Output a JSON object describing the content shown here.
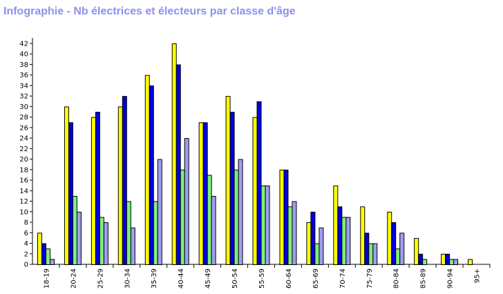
{
  "title_color": "#8f8fef",
  "chart_data": {
    "type": "bar",
    "title": "Infographie - Nb électrices et électeurs par classe d'âge",
    "categories": [
      "18-19",
      "20-24",
      "25-29",
      "30-34",
      "35-39",
      "40-44",
      "45-49",
      "50-54",
      "55-59",
      "60-64",
      "65-69",
      "70-74",
      "75-79",
      "80-84",
      "85-89",
      "90-94",
      "95+"
    ],
    "series": [
      {
        "color": "#ffff00",
        "values": [
          6,
          30,
          28,
          30,
          36,
          42,
          27,
          32,
          28,
          18,
          8,
          15,
          11,
          10,
          5,
          2,
          1
        ]
      },
      {
        "color": "#0000e0",
        "values": [
          4,
          27,
          29,
          32,
          34,
          38,
          27,
          29,
          31,
          18,
          10,
          11,
          6,
          8,
          2,
          2,
          0
        ]
      },
      {
        "color": "#7fef7f",
        "values": [
          3,
          13,
          9,
          12,
          12,
          18,
          17,
          18,
          15,
          11,
          4,
          9,
          4,
          3,
          1,
          1,
          0
        ]
      },
      {
        "color": "#9f9fef",
        "values": [
          1,
          10,
          8,
          7,
          20,
          24,
          13,
          20,
          15,
          12,
          7,
          9,
          4,
          6,
          0,
          1,
          0
        ]
      }
    ],
    "yticks": [
      "0",
      "2",
      "4",
      "6",
      "8",
      "10",
      "12",
      "14",
      "16",
      "18",
      "20",
      "22",
      "24",
      "26",
      "28",
      "30",
      "32",
      "34",
      "36",
      "38",
      "40",
      "42"
    ],
    "ylim": [
      0,
      43
    ],
    "xlabel": "",
    "ylabel": "",
    "grid": false,
    "legend": "none"
  }
}
